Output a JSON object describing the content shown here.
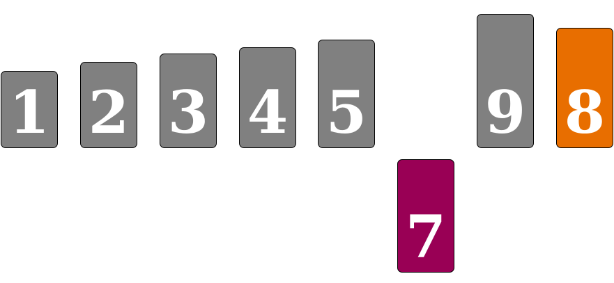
{
  "colors": {
    "default": "#808080",
    "pink": "#990055",
    "orange": "#e86e00"
  },
  "cards": [
    {
      "label": "1",
      "color": "default"
    },
    {
      "label": "2",
      "color": "default"
    },
    {
      "label": "3",
      "color": "default"
    },
    {
      "label": "4",
      "color": "default"
    },
    {
      "label": "5",
      "color": "default"
    },
    {
      "label": "7",
      "color": "pink"
    },
    {
      "label": "9",
      "color": "default"
    },
    {
      "label": "8",
      "color": "orange"
    }
  ]
}
